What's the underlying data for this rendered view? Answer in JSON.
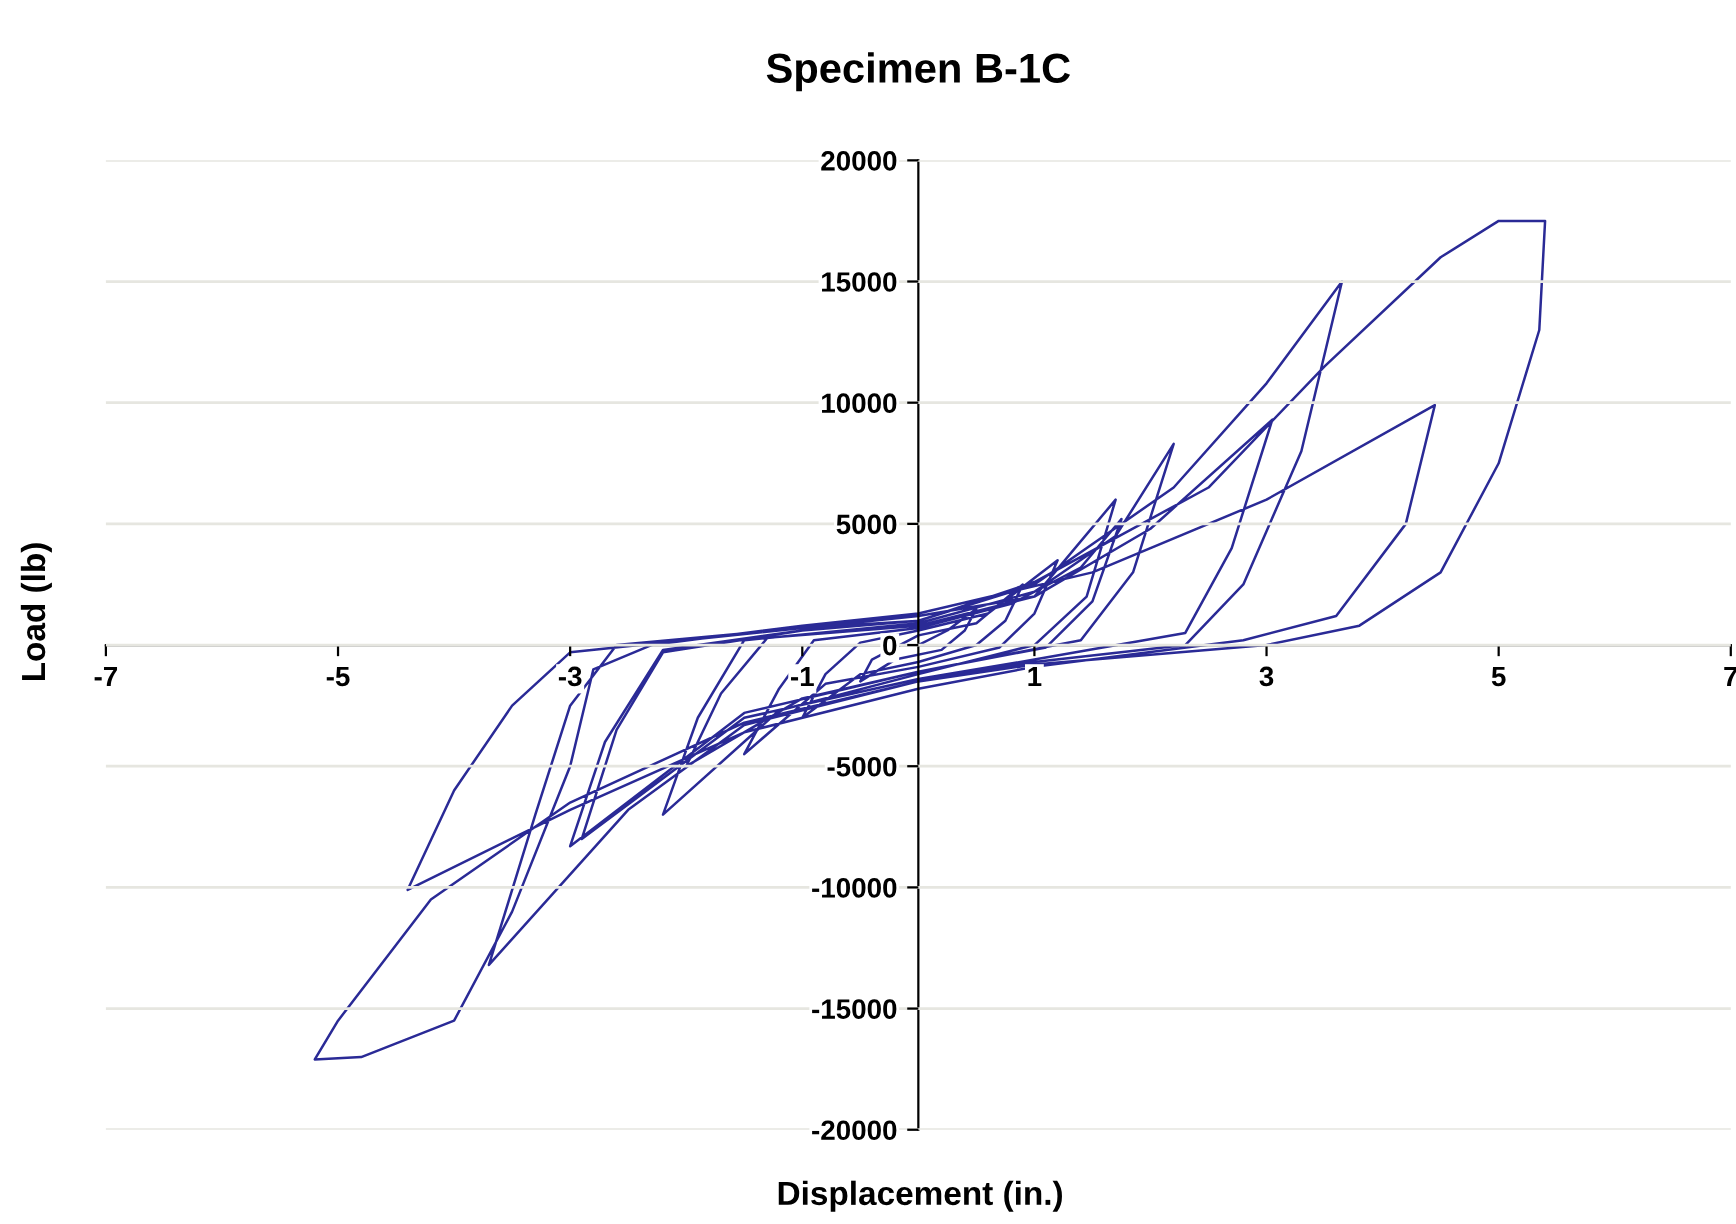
{
  "chart_data": {
    "type": "line",
    "title": "Specimen B-1C",
    "xlabel": "Displacement (in.)",
    "ylabel": "Load (lb)",
    "xlim": [
      -7,
      7
    ],
    "xticks": [
      -7,
      -5,
      -3,
      -1,
      1,
      3,
      5,
      7
    ],
    "ylim": [
      -20000,
      20000
    ],
    "yticks": [
      -20000,
      -15000,
      -10000,
      -5000,
      0,
      5000,
      10000,
      15000,
      20000
    ],
    "grid": "y",
    "series": [
      {
        "color": "#2a2a96",
        "x": [
          0,
          0.25,
          0.5,
          0.4,
          0.2,
          -0.2,
          -0.5,
          -0.4,
          0,
          0.5,
          0.9,
          0.75,
          0.5,
          0,
          -0.5,
          -1.0,
          -0.8,
          -0.5,
          0,
          0.6,
          1.2,
          1.0,
          0.7,
          0,
          -0.8,
          -1.5,
          -1.2,
          -0.9,
          0,
          0.8,
          1.4,
          1.75,
          1.5,
          1.1,
          0,
          -1.0,
          -2.0,
          -1.7,
          -1.3,
          0,
          1,
          1.7,
          1.45,
          1.0,
          0,
          -1.2,
          -2.2,
          -1.9,
          -1.5,
          0,
          1,
          1.7,
          2.2,
          1.85,
          1.4,
          0,
          -1.5,
          -3.0,
          -2.7,
          -2.2,
          -1,
          0,
          1,
          2.2,
          3,
          3.65,
          3.3,
          2.8,
          2.3,
          1,
          0,
          -1.5,
          -2.5,
          -3.7,
          -3.3,
          -3.0,
          -2.6,
          -1,
          0,
          1,
          2,
          3.05,
          2.7,
          2.3,
          1,
          0,
          -1.5,
          -2.9,
          -2.6,
          -2.2,
          -1,
          0,
          1,
          2.5,
          3.5,
          4.5,
          5.0,
          5.4,
          5.35,
          5.0,
          4.5,
          3.8,
          3,
          1,
          0,
          -1.5,
          -3,
          -4.2,
          -5,
          -5.2,
          -4.8,
          -4,
          -3.5,
          -3,
          -2.8,
          -2.3,
          -1,
          0,
          1.5,
          3,
          4.45,
          4.2,
          3.6,
          2.8,
          1,
          0,
          -1.5,
          -3,
          -4.4,
          -4,
          -3.5,
          -3,
          -1,
          0
        ],
        "values": [
          0,
          600,
          1500,
          600,
          -200,
          -600,
          -1500,
          -600,
          400,
          900,
          2500,
          1000,
          0,
          -700,
          -1200,
          -3000,
          -1200,
          100,
          600,
          1300,
          3500,
          1300,
          -100,
          -900,
          -1600,
          -4500,
          -1800,
          200,
          700,
          1700,
          3200,
          5200,
          1800,
          -100,
          -1100,
          -2200,
          -5000,
          -2000,
          300,
          800,
          2000,
          6000,
          2000,
          0,
          -1200,
          -2700,
          -7000,
          -3000,
          200,
          900,
          2200,
          4500,
          8300,
          3000,
          200,
          -1100,
          -2800,
          -8300,
          -4000,
          -200,
          600,
          1000,
          2500,
          6500,
          10800,
          15000,
          8000,
          2500,
          0,
          -700,
          -1500,
          -3300,
          -6800,
          -13200,
          -7000,
          -2500,
          0,
          700,
          1200,
          2000,
          4800,
          9300,
          4000,
          500,
          -600,
          -1400,
          -3000,
          -8000,
          -3500,
          -300,
          600,
          1000,
          2600,
          6500,
          11500,
          16000,
          17500,
          17500,
          13000,
          7500,
          3000,
          800,
          0,
          -800,
          -1500,
          -3200,
          -6500,
          -10500,
          -15500,
          -17100,
          -17000,
          -15500,
          -11000,
          -5000,
          -1000,
          0,
          800,
          1300,
          3000,
          6000,
          9900,
          5000,
          1200,
          200,
          -900,
          -1800,
          -3600,
          -6800,
          -10100,
          -6000,
          -2500,
          -300,
          700,
          1000
        ]
      }
    ]
  }
}
